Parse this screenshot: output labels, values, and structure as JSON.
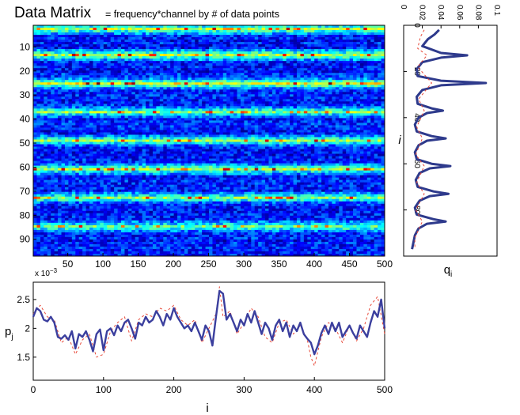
{
  "figure": {
    "title": "Data Matrix",
    "subtitle": "= frequency*channel  by # of data points"
  },
  "chart_data": [
    {
      "type": "heatmap",
      "title": "Data Matrix",
      "subtitle": "= frequency*channel  by # of data points",
      "xlim": [
        1,
        500
      ],
      "ylim": [
        1,
        97
      ],
      "y_reversed": true,
      "x_ticks": [
        "50",
        "100",
        "150",
        "200",
        "250",
        "300",
        "350",
        "400",
        "450",
        "500"
      ],
      "y_ticks": [
        "10",
        "20",
        "30",
        "40",
        "50",
        "60",
        "70",
        "80",
        "90"
      ],
      "colormap": "jet",
      "bands": [
        {
          "row": 2,
          "intensity": 0.9
        },
        {
          "row": 13,
          "intensity": 0.95
        },
        {
          "row": 25,
          "intensity": 1.0
        },
        {
          "row": 37,
          "intensity": 0.75
        },
        {
          "row": 49,
          "intensity": 0.8
        },
        {
          "row": 61,
          "intensity": 0.85
        },
        {
          "row": 73,
          "intensity": 0.8
        },
        {
          "row": 85,
          "intensity": 0.75
        }
      ]
    },
    {
      "type": "line",
      "xlabel": "q_i",
      "ylabel": "i",
      "orientation": "vertical",
      "xlim": [
        0,
        0.1
      ],
      "ylim": [
        0,
        100
      ],
      "y_reversed": true,
      "x_ticks": [
        "0",
        "0.02",
        "0.04",
        "0.06",
        "0.08",
        "0.1"
      ],
      "y_ticks": [
        "0",
        "20",
        "40",
        "60",
        "80"
      ],
      "series": [
        {
          "style": "solid",
          "color": "#2e3a8c",
          "i": [
            2,
            4,
            6,
            9,
            12,
            13,
            14,
            16,
            19,
            22,
            24,
            25,
            26,
            28,
            31,
            34,
            36,
            37,
            38,
            40,
            43,
            46,
            48,
            49,
            50,
            52,
            55,
            58,
            60,
            61,
            62,
            64,
            67,
            70,
            72,
            73,
            74,
            76,
            79,
            82,
            84,
            85,
            86,
            88,
            91,
            95,
            97
          ],
          "q": [
            0.038,
            0.033,
            0.026,
            0.02,
            0.04,
            0.068,
            0.04,
            0.02,
            0.014,
            0.015,
            0.04,
            0.088,
            0.04,
            0.02,
            0.014,
            0.015,
            0.03,
            0.042,
            0.025,
            0.016,
            0.012,
            0.014,
            0.03,
            0.045,
            0.025,
            0.016,
            0.012,
            0.014,
            0.03,
            0.05,
            0.028,
            0.017,
            0.013,
            0.015,
            0.032,
            0.048,
            0.028,
            0.017,
            0.012,
            0.014,
            0.032,
            0.045,
            0.025,
            0.016,
            0.012,
            0.01,
            0.009
          ]
        },
        {
          "style": "dashed",
          "color": "#e84a3a",
          "i": [
            2,
            5,
            10,
            13,
            18,
            25,
            32,
            37,
            44,
            49,
            56,
            61,
            68,
            73,
            80,
            85,
            92,
            97
          ],
          "q": [
            0.022,
            0.018,
            0.015,
            0.025,
            0.015,
            0.03,
            0.016,
            0.022,
            0.014,
            0.02,
            0.013,
            0.022,
            0.014,
            0.022,
            0.013,
            0.02,
            0.012,
            0.012
          ]
        }
      ]
    },
    {
      "type": "line",
      "xlabel": "i",
      "ylabel": "p_j",
      "exponent_label": "x 10",
      "exponent": "−3",
      "xlim": [
        0,
        500
      ],
      "ylim": [
        1.1,
        2.8
      ],
      "x_ticks": [
        "0",
        "100",
        "200",
        "300",
        "400",
        "500"
      ],
      "y_ticks": [
        "1.5",
        "2",
        "2.5"
      ],
      "series": [
        {
          "style": "solid",
          "color": "#3b3f9e",
          "x": [
            0,
            5,
            10,
            15,
            20,
            25,
            30,
            35,
            40,
            45,
            50,
            55,
            60,
            65,
            70,
            75,
            80,
            85,
            90,
            95,
            100,
            105,
            110,
            115,
            120,
            125,
            130,
            135,
            140,
            145,
            150,
            155,
            160,
            165,
            170,
            175,
            180,
            185,
            190,
            195,
            200,
            205,
            210,
            215,
            220,
            225,
            230,
            235,
            240,
            245,
            250,
            255,
            260,
            265,
            270,
            275,
            280,
            285,
            290,
            295,
            300,
            305,
            310,
            315,
            320,
            325,
            330,
            335,
            340,
            345,
            350,
            355,
            360,
            365,
            370,
            375,
            380,
            385,
            390,
            395,
            400,
            405,
            410,
            415,
            420,
            425,
            430,
            435,
            440,
            445,
            450,
            455,
            460,
            465,
            470,
            475,
            480,
            485,
            490,
            495,
            500
          ],
          "y": [
            2.2,
            2.35,
            2.3,
            2.15,
            2.12,
            2.2,
            2.1,
            1.85,
            1.82,
            1.88,
            1.8,
            1.95,
            1.65,
            1.9,
            1.85,
            1.95,
            1.8,
            1.6,
            1.9,
            1.98,
            1.62,
            1.95,
            2.0,
            1.88,
            2.05,
            1.95,
            2.1,
            2.15,
            2.0,
            1.82,
            2.1,
            2.05,
            2.2,
            2.1,
            2.15,
            2.3,
            2.2,
            2.05,
            2.25,
            2.15,
            2.35,
            2.2,
            2.1,
            2.0,
            2.05,
            1.95,
            2.1,
            1.95,
            1.8,
            2.05,
            1.95,
            1.7,
            2.2,
            2.65,
            2.6,
            2.15,
            2.25,
            2.1,
            1.95,
            2.15,
            2.05,
            2.25,
            2.1,
            2.3,
            2.1,
            1.9,
            2.1,
            2.0,
            1.8,
            2.05,
            2.15,
            1.95,
            2.1,
            1.85,
            2.05,
            1.95,
            2.1,
            1.9,
            1.82,
            1.75,
            1.55,
            1.7,
            1.92,
            2.05,
            1.9,
            2.1,
            1.95,
            2.1,
            1.85,
            1.95,
            2.05,
            1.92,
            1.82,
            2.05,
            1.95,
            1.85,
            2.1,
            2.3,
            2.2,
            2.5,
            2.0
          ]
        },
        {
          "style": "dashed",
          "color": "#e84a3a",
          "x": [
            0,
            10,
            20,
            30,
            40,
            50,
            60,
            70,
            80,
            90,
            100,
            110,
            120,
            130,
            140,
            150,
            160,
            170,
            180,
            190,
            200,
            210,
            220,
            230,
            240,
            250,
            260,
            265,
            270,
            280,
            290,
            300,
            310,
            320,
            330,
            340,
            350,
            360,
            370,
            380,
            390,
            395,
            400,
            410,
            420,
            430,
            440,
            450,
            460,
            470,
            480,
            490,
            500
          ],
          "y": [
            2.25,
            2.4,
            2.2,
            2.15,
            1.75,
            1.85,
            1.55,
            1.8,
            1.9,
            1.5,
            1.55,
            1.95,
            2.1,
            2.2,
            1.78,
            2.15,
            2.25,
            2.2,
            2.35,
            2.3,
            2.4,
            2.15,
            2.05,
            2.15,
            1.75,
            2.0,
            2.25,
            2.72,
            2.2,
            2.3,
            1.9,
            2.1,
            2.35,
            2.2,
            1.85,
            1.75,
            2.1,
            2.15,
            1.9,
            2.05,
            1.8,
            1.5,
            1.35,
            1.85,
            2.1,
            2.0,
            1.75,
            2.05,
            1.78,
            2.0,
            2.4,
            2.55,
            1.9
          ]
        }
      ]
    }
  ]
}
